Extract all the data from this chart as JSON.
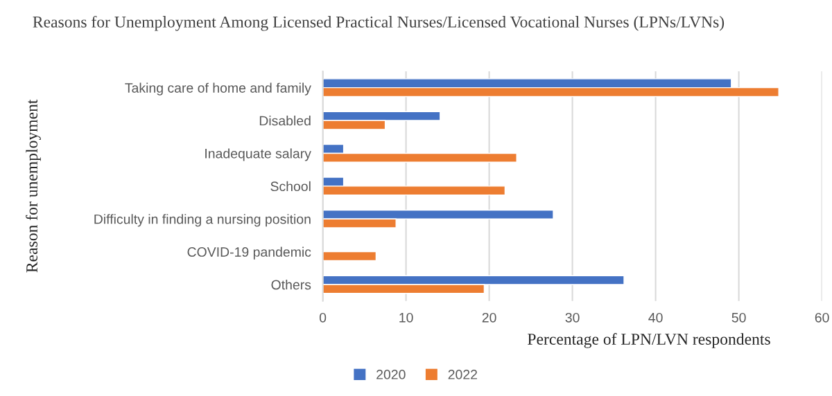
{
  "chart_data": {
    "type": "bar",
    "orientation": "horizontal",
    "title": "Reasons for Unemployment Among Licensed Practical Nurses/Licensed Vocational Nurses (LPNs/LVNs)",
    "xlabel": "Percentage of LPN/LVN respondents",
    "ylabel": "Reason for unemployment",
    "categories": [
      "Taking care of home and family",
      "Disabled",
      "Inadequate salary",
      "School",
      "Difficulty in finding a nursing position",
      "COVID-19 pandemic",
      "Others"
    ],
    "series": [
      {
        "name": "2020",
        "color": "#4472c4",
        "values": [
          49.1,
          14.1,
          2.5,
          2.5,
          27.7,
          null,
          36.2
        ]
      },
      {
        "name": "2022",
        "color": "#ed7d31",
        "values": [
          54.8,
          7.5,
          23.3,
          21.9,
          8.8,
          6.4,
          19.4
        ]
      }
    ],
    "xlim": [
      0,
      60
    ],
    "xticks": [
      0,
      10,
      20,
      30,
      40,
      50,
      60
    ],
    "grid": "x",
    "legend": "bottom"
  }
}
